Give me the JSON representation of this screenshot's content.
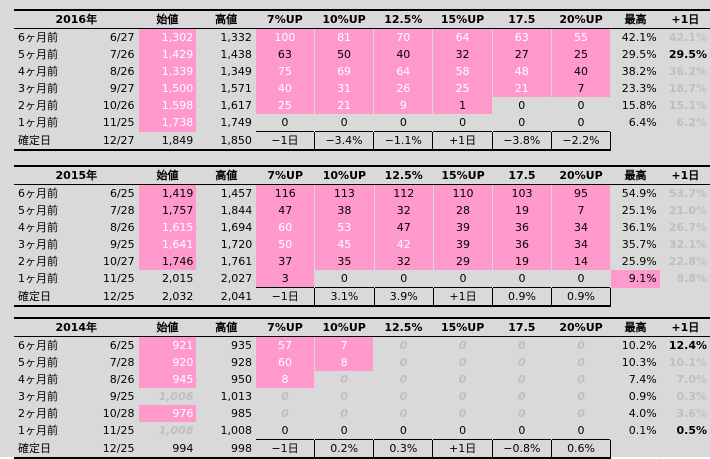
{
  "headers": [
    "始値",
    "高値",
    "7%UP",
    "10%UP",
    "12.5%",
    "15%UP",
    "17.5",
    "20%UP",
    "最高",
    "+1日"
  ],
  "blocks": [
    {
      "year": "2016年",
      "rows": [
        {
          "label": "6ヶ月前",
          "date": "6/27",
          "open": "1,302",
          "high": "1,332",
          "p7": "100",
          "p10": "81",
          "p125": "70",
          "p15": "64",
          "p175": "63",
          "p20": "55",
          "max": "42.1%",
          "d1": "42.1%"
        },
        {
          "label": "5ヶ月前",
          "date": "7/26",
          "open": "1,429",
          "high": "1,438",
          "p7": "63",
          "p10": "50",
          "p125": "40",
          "p15": "32",
          "p175": "27",
          "p20": "25",
          "max": "29.5%",
          "d1": "29.5%"
        },
        {
          "label": "4ヶ月前",
          "date": "8/26",
          "open": "1,339",
          "high": "1,349",
          "p7": "75",
          "p10": "69",
          "p125": "64",
          "p15": "58",
          "p175": "48",
          "p20": "40",
          "max": "38.2%",
          "d1": "36.2%"
        },
        {
          "label": "3ヶ月前",
          "date": "9/27",
          "open": "1,500",
          "high": "1,571",
          "p7": "40",
          "p10": "31",
          "p125": "26",
          "p15": "25",
          "p175": "21",
          "p20": "7",
          "max": "23.3%",
          "d1": "18.7%"
        },
        {
          "label": "2ヶ月前",
          "date": "10/26",
          "open": "1,598",
          "high": "1,617",
          "p7": "25",
          "p10": "21",
          "p125": "9",
          "p15": "1",
          "p175": "0",
          "p20": "0",
          "max": "15.8%",
          "d1": "15.1%"
        },
        {
          "label": "1ヶ月前",
          "date": "11/25",
          "open": "1,738",
          "high": "1,749",
          "p7": "0",
          "p10": "0",
          "p125": "0",
          "p15": "0",
          "p175": "0",
          "p20": "0",
          "max": "6.4%",
          "d1": "6.2%"
        }
      ],
      "confirm": {
        "label": "確定日",
        "date": "12/27",
        "open": "1,849",
        "high": "1,850",
        "p7": "−1日",
        "p10": "−3.4%",
        "p125": "−1.1%",
        "p15": "+1日",
        "p175": "−3.8%",
        "p20": "−2.2%"
      }
    },
    {
      "year": "2015年",
      "rows": [
        {
          "label": "6ヶ月前",
          "date": "6/25",
          "open": "1,419",
          "high": "1,457",
          "p7": "116",
          "p10": "113",
          "p125": "112",
          "p15": "110",
          "p175": "103",
          "p20": "95",
          "max": "54.9%",
          "d1": "53.7%"
        },
        {
          "label": "5ヶ月前",
          "date": "7/28",
          "open": "1,757",
          "high": "1,844",
          "p7": "47",
          "p10": "38",
          "p125": "32",
          "p15": "28",
          "p175": "19",
          "p20": "7",
          "max": "25.1%",
          "d1": "21.0%"
        },
        {
          "label": "4ヶ月前",
          "date": "8/26",
          "open": "1,615",
          "high": "1,694",
          "p7": "60",
          "p10": "53",
          "p125": "47",
          "p15": "39",
          "p175": "36",
          "p20": "34",
          "max": "36.1%",
          "d1": "26.7%"
        },
        {
          "label": "3ヶ月前",
          "date": "9/25",
          "open": "1,641",
          "high": "1,720",
          "p7": "50",
          "p10": "45",
          "p125": "42",
          "p15": "39",
          "p175": "36",
          "p20": "34",
          "max": "35.7%",
          "d1": "32.1%"
        },
        {
          "label": "2ヶ月前",
          "date": "10/27",
          "open": "1,746",
          "high": "1,761",
          "p7": "37",
          "p10": "35",
          "p125": "32",
          "p15": "29",
          "p175": "19",
          "p20": "14",
          "max": "25.9%",
          "d1": "22.8%"
        },
        {
          "label": "1ヶ月前",
          "date": "11/25",
          "open": "2,015",
          "high": "2,027",
          "p7": "3",
          "p10": "0",
          "p125": "0",
          "p15": "0",
          "p175": "0",
          "p20": "0",
          "max": "9.1%",
          "d1": "8.8%"
        }
      ],
      "confirm": {
        "label": "確定日",
        "date": "12/25",
        "open": "2,032",
        "high": "2,041",
        "p7": "−1日",
        "p10": "3.1%",
        "p125": "3.9%",
        "p15": "+1日",
        "p175": "0.9%",
        "p20": "0.9%"
      }
    },
    {
      "year": "2014年",
      "rows": [
        {
          "label": "6ヶ月前",
          "date": "6/25",
          "open": "921",
          "high": "935",
          "p7": "57",
          "p10": "7",
          "p125": "0",
          "p15": "0",
          "p175": "0",
          "p20": "0",
          "max": "10.2%",
          "d1": "12.4%"
        },
        {
          "label": "5ヶ月前",
          "date": "7/28",
          "open": "920",
          "high": "928",
          "p7": "60",
          "p10": "8",
          "p125": "0",
          "p15": "0",
          "p175": "0",
          "p20": "0",
          "max": "10.3%",
          "d1": "10.1%"
        },
        {
          "label": "4ヶ月前",
          "date": "8/26",
          "open": "945",
          "high": "950",
          "p7": "8",
          "p10": "0",
          "p125": "0",
          "p15": "0",
          "p175": "0",
          "p20": "0",
          "max": "7.4%",
          "d1": "7.0%"
        },
        {
          "label": "3ヶ月前",
          "date": "9/25",
          "open": "1,006",
          "high": "1,013",
          "p7": "0",
          "p10": "0",
          "p125": "0",
          "p15": "0",
          "p175": "0",
          "p20": "0",
          "max": "0.9%",
          "d1": "0.3%"
        },
        {
          "label": "2ヶ月前",
          "date": "10/28",
          "open": "976",
          "high": "985",
          "p7": "0",
          "p10": "0",
          "p125": "0",
          "p15": "0",
          "p175": "0",
          "p20": "0",
          "max": "4.0%",
          "d1": "3.6%"
        },
        {
          "label": "1ヶ月前",
          "date": "11/25",
          "open": "1,008",
          "high": "1,008",
          "p7": "0",
          "p10": "0",
          "p125": "0",
          "p15": "0",
          "p175": "0",
          "p20": "0",
          "max": "0.1%",
          "d1": "0.5%"
        }
      ],
      "confirm": {
        "label": "確定日",
        "date": "12/25",
        "open": "994",
        "high": "998",
        "p7": "−1日",
        "p10": "0.2%",
        "p125": "0.3%",
        "p15": "+1日",
        "p175": "−0.8%",
        "p20": "0.6%"
      }
    }
  ],
  "colors": {
    "highlight": "#ff99cc",
    "muted": "#bfbfbf",
    "gridline": "#d9d9d9"
  }
}
